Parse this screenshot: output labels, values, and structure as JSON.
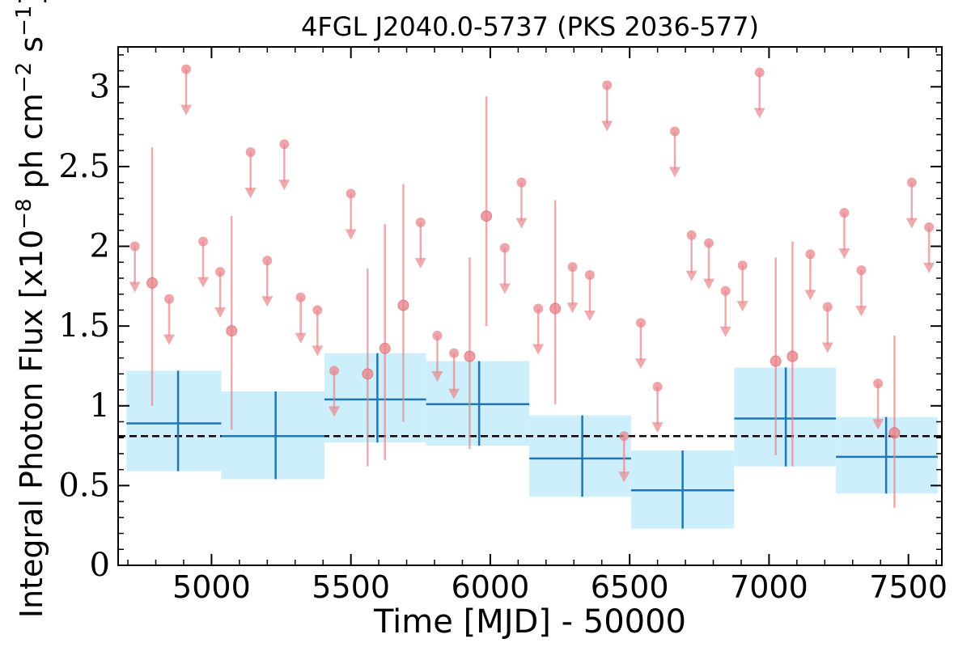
{
  "chart_data": {
    "type": "scatter",
    "title": "4FGL J2040.0-5737 (PKS 2036-577)",
    "xlabel": "Time [MJD] - 50000",
    "ylabel": "Integral Photon Flux [x10",
    "ylabel_exp": "−8",
    "ylabel_mid": " ph cm",
    "ylabel_exp2": "−2",
    "ylabel_end": " s",
    "ylabel_exp3": "−1",
    "ylabel_close": "]",
    "xlim": [
      4665,
      7620
    ],
    "ylim": [
      0,
      3.25
    ],
    "xticks": [
      5000,
      5500,
      6000,
      6500,
      7000,
      7500
    ],
    "xtick_labels": [
      "5000",
      "5500",
      "6000",
      "6500",
      "7000",
      "7500"
    ],
    "yticks": [
      0,
      0.5,
      1,
      1.5,
      2,
      2.5,
      3
    ],
    "ytick_labels": [
      "0",
      "0.5",
      "1",
      "1.5",
      "2",
      "2.5",
      "3"
    ],
    "reference_line": 0.81,
    "colors": {
      "points": "#e8868c",
      "bins": "#1f77b4",
      "bin_band": "#cdeefb",
      "reference": "#000000"
    },
    "binned": [
      {
        "x": 4880,
        "x_lo": 4695,
        "x_hi": 5035,
        "y": 0.89,
        "y_lo": 0.59,
        "y_hi": 1.22
      },
      {
        "x": 5230,
        "x_lo": 5035,
        "x_hi": 5405,
        "y": 0.81,
        "y_lo": 0.54,
        "y_hi": 1.09
      },
      {
        "x": 5595,
        "x_lo": 5405,
        "x_hi": 5770,
        "y": 1.04,
        "y_lo": 0.77,
        "y_hi": 1.33
      },
      {
        "x": 5960,
        "x_lo": 5770,
        "x_hi": 6140,
        "y": 1.01,
        "y_lo": 0.75,
        "y_hi": 1.28
      },
      {
        "x": 6330,
        "x_lo": 6140,
        "x_hi": 6505,
        "y": 0.67,
        "y_lo": 0.43,
        "y_hi": 0.94
      },
      {
        "x": 6690,
        "x_lo": 6505,
        "x_hi": 6875,
        "y": 0.47,
        "y_lo": 0.23,
        "y_hi": 0.72
      },
      {
        "x": 7060,
        "x_lo": 6875,
        "x_hi": 7240,
        "y": 0.92,
        "y_lo": 0.62,
        "y_hi": 1.24
      },
      {
        "x": 7420,
        "x_lo": 7240,
        "x_hi": 7605,
        "y": 0.68,
        "y_lo": 0.45,
        "y_hi": 0.93
      }
    ],
    "detections": [
      {
        "x": 4787,
        "y": 1.77,
        "y_lo": 1.0,
        "y_hi": 2.62
      },
      {
        "x": 5072,
        "y": 1.47,
        "y_lo": 0.85,
        "y_hi": 2.19
      },
      {
        "x": 5560,
        "y": 1.2,
        "y_lo": 0.62,
        "y_hi": 1.86
      },
      {
        "x": 5622,
        "y": 1.36,
        "y_lo": 0.66,
        "y_hi": 2.14
      },
      {
        "x": 5688,
        "y": 1.63,
        "y_lo": 0.9,
        "y_hi": 2.39
      },
      {
        "x": 5926,
        "y": 1.31,
        "y_lo": 0.73,
        "y_hi": 1.93
      },
      {
        "x": 5986,
        "y": 2.19,
        "y_lo": 1.5,
        "y_hi": 2.94
      },
      {
        "x": 6233,
        "y": 1.61,
        "y_lo": 1.01,
        "y_hi": 2.29
      },
      {
        "x": 7024,
        "y": 1.28,
        "y_lo": 0.69,
        "y_hi": 1.93
      },
      {
        "x": 7084,
        "y": 1.31,
        "y_lo": 0.62,
        "y_hi": 2.03
      },
      {
        "x": 7450,
        "y": 0.83,
        "y_lo": 0.36,
        "y_hi": 1.44
      }
    ],
    "upper_limits": [
      {
        "x": 4725,
        "y": 2.0
      },
      {
        "x": 4848,
        "y": 1.67
      },
      {
        "x": 4909,
        "y": 3.11
      },
      {
        "x": 4970,
        "y": 2.03
      },
      {
        "x": 5031,
        "y": 1.84
      },
      {
        "x": 5140,
        "y": 2.59
      },
      {
        "x": 5200,
        "y": 1.91
      },
      {
        "x": 5261,
        "y": 2.64
      },
      {
        "x": 5320,
        "y": 1.68
      },
      {
        "x": 5380,
        "y": 1.6
      },
      {
        "x": 5440,
        "y": 1.22
      },
      {
        "x": 5500,
        "y": 2.33
      },
      {
        "x": 5750,
        "y": 2.15
      },
      {
        "x": 5810,
        "y": 1.44
      },
      {
        "x": 5870,
        "y": 1.33
      },
      {
        "x": 6052,
        "y": 1.99
      },
      {
        "x": 6112,
        "y": 2.4
      },
      {
        "x": 6172,
        "y": 1.61
      },
      {
        "x": 6295,
        "y": 1.87
      },
      {
        "x": 6357,
        "y": 1.82
      },
      {
        "x": 6419,
        "y": 3.01
      },
      {
        "x": 6480,
        "y": 0.81
      },
      {
        "x": 6540,
        "y": 1.52
      },
      {
        "x": 6600,
        "y": 1.12
      },
      {
        "x": 6662,
        "y": 2.72
      },
      {
        "x": 6722,
        "y": 2.07
      },
      {
        "x": 6784,
        "y": 2.02
      },
      {
        "x": 6844,
        "y": 1.72
      },
      {
        "x": 6905,
        "y": 1.88
      },
      {
        "x": 6966,
        "y": 3.09
      },
      {
        "x": 7148,
        "y": 1.95
      },
      {
        "x": 7210,
        "y": 1.62
      },
      {
        "x": 7270,
        "y": 2.21
      },
      {
        "x": 7331,
        "y": 1.85
      },
      {
        "x": 7391,
        "y": 1.14
      },
      {
        "x": 7512,
        "y": 2.4
      },
      {
        "x": 7574,
        "y": 2.12
      }
    ]
  }
}
